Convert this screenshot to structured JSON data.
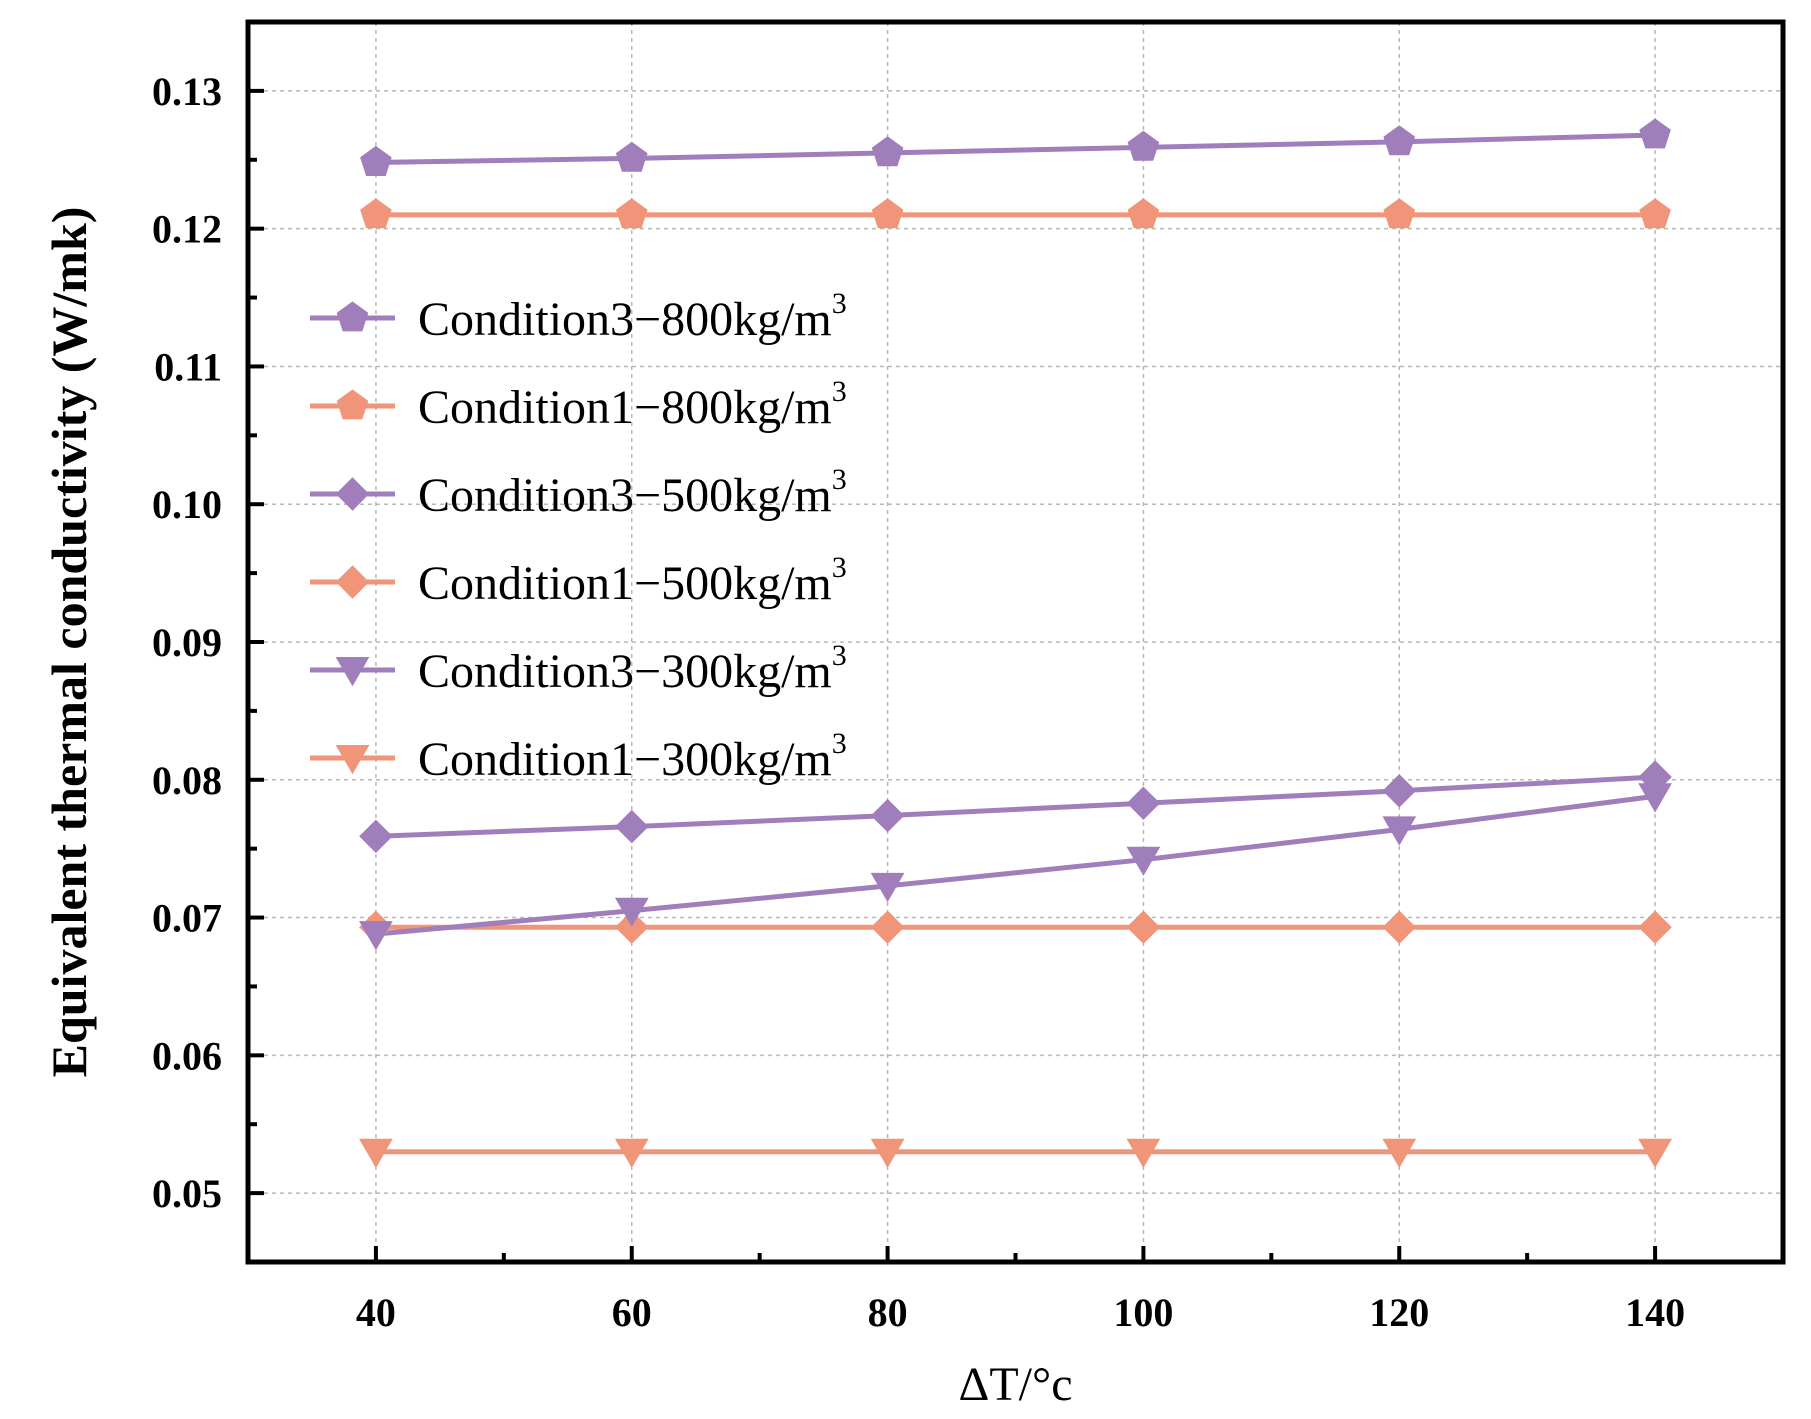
{
  "chart_data": {
    "type": "line",
    "xlabel": "ΔT/°c",
    "ylabel": "Equivalent thermal conductivity (W/mk)",
    "x": [
      40,
      60,
      80,
      100,
      120,
      140
    ],
    "xlim": [
      30,
      150
    ],
    "ylim": [
      0.045,
      0.135
    ],
    "xticks": [
      40,
      60,
      80,
      100,
      120,
      140
    ],
    "xtick_labels": [
      "40",
      "60",
      "80",
      "100",
      "120",
      "140"
    ],
    "yticks": [
      0.05,
      0.06,
      0.07,
      0.08,
      0.09,
      0.1,
      0.11,
      0.12,
      0.13
    ],
    "ytick_labels": [
      "0.05",
      "0.06",
      "0.07",
      "0.08",
      "0.09",
      "0.10",
      "0.11",
      "0.12",
      "0.13"
    ],
    "grid": true,
    "legend_position": "upper-left",
    "series": [
      {
        "name": "Condition3−800kg/m",
        "sup": "3",
        "marker": "pentagon",
        "color": "#a07dbb",
        "values": [
          0.1248,
          0.1251,
          0.1255,
          0.1259,
          0.1263,
          0.1268
        ]
      },
      {
        "name": "Condition1−800kg/m",
        "sup": "3",
        "marker": "pentagon",
        "color": "#f0957a",
        "values": [
          0.121,
          0.121,
          0.121,
          0.121,
          0.121,
          0.121
        ]
      },
      {
        "name": "Condition3−500kg/m",
        "sup": "3",
        "marker": "diamond",
        "color": "#a07dbb",
        "values": [
          0.0759,
          0.0766,
          0.0774,
          0.0783,
          0.0792,
          0.0802
        ]
      },
      {
        "name": "Condition1−500kg/m",
        "sup": "3",
        "marker": "diamond",
        "color": "#f0957a",
        "values": [
          0.0693,
          0.0693,
          0.0693,
          0.0693,
          0.0693,
          0.0693
        ]
      },
      {
        "name": "Condition3−300kg/m",
        "sup": "3",
        "marker": "triangle-down",
        "color": "#a07dbb",
        "values": [
          0.0688,
          0.0705,
          0.0723,
          0.0742,
          0.0764,
          0.0788
        ]
      },
      {
        "name": "Condition1−300kg/m",
        "sup": "3",
        "marker": "triangle-down",
        "color": "#f0957a",
        "values": [
          0.053,
          0.053,
          0.053,
          0.053,
          0.053,
          0.053
        ]
      }
    ]
  }
}
